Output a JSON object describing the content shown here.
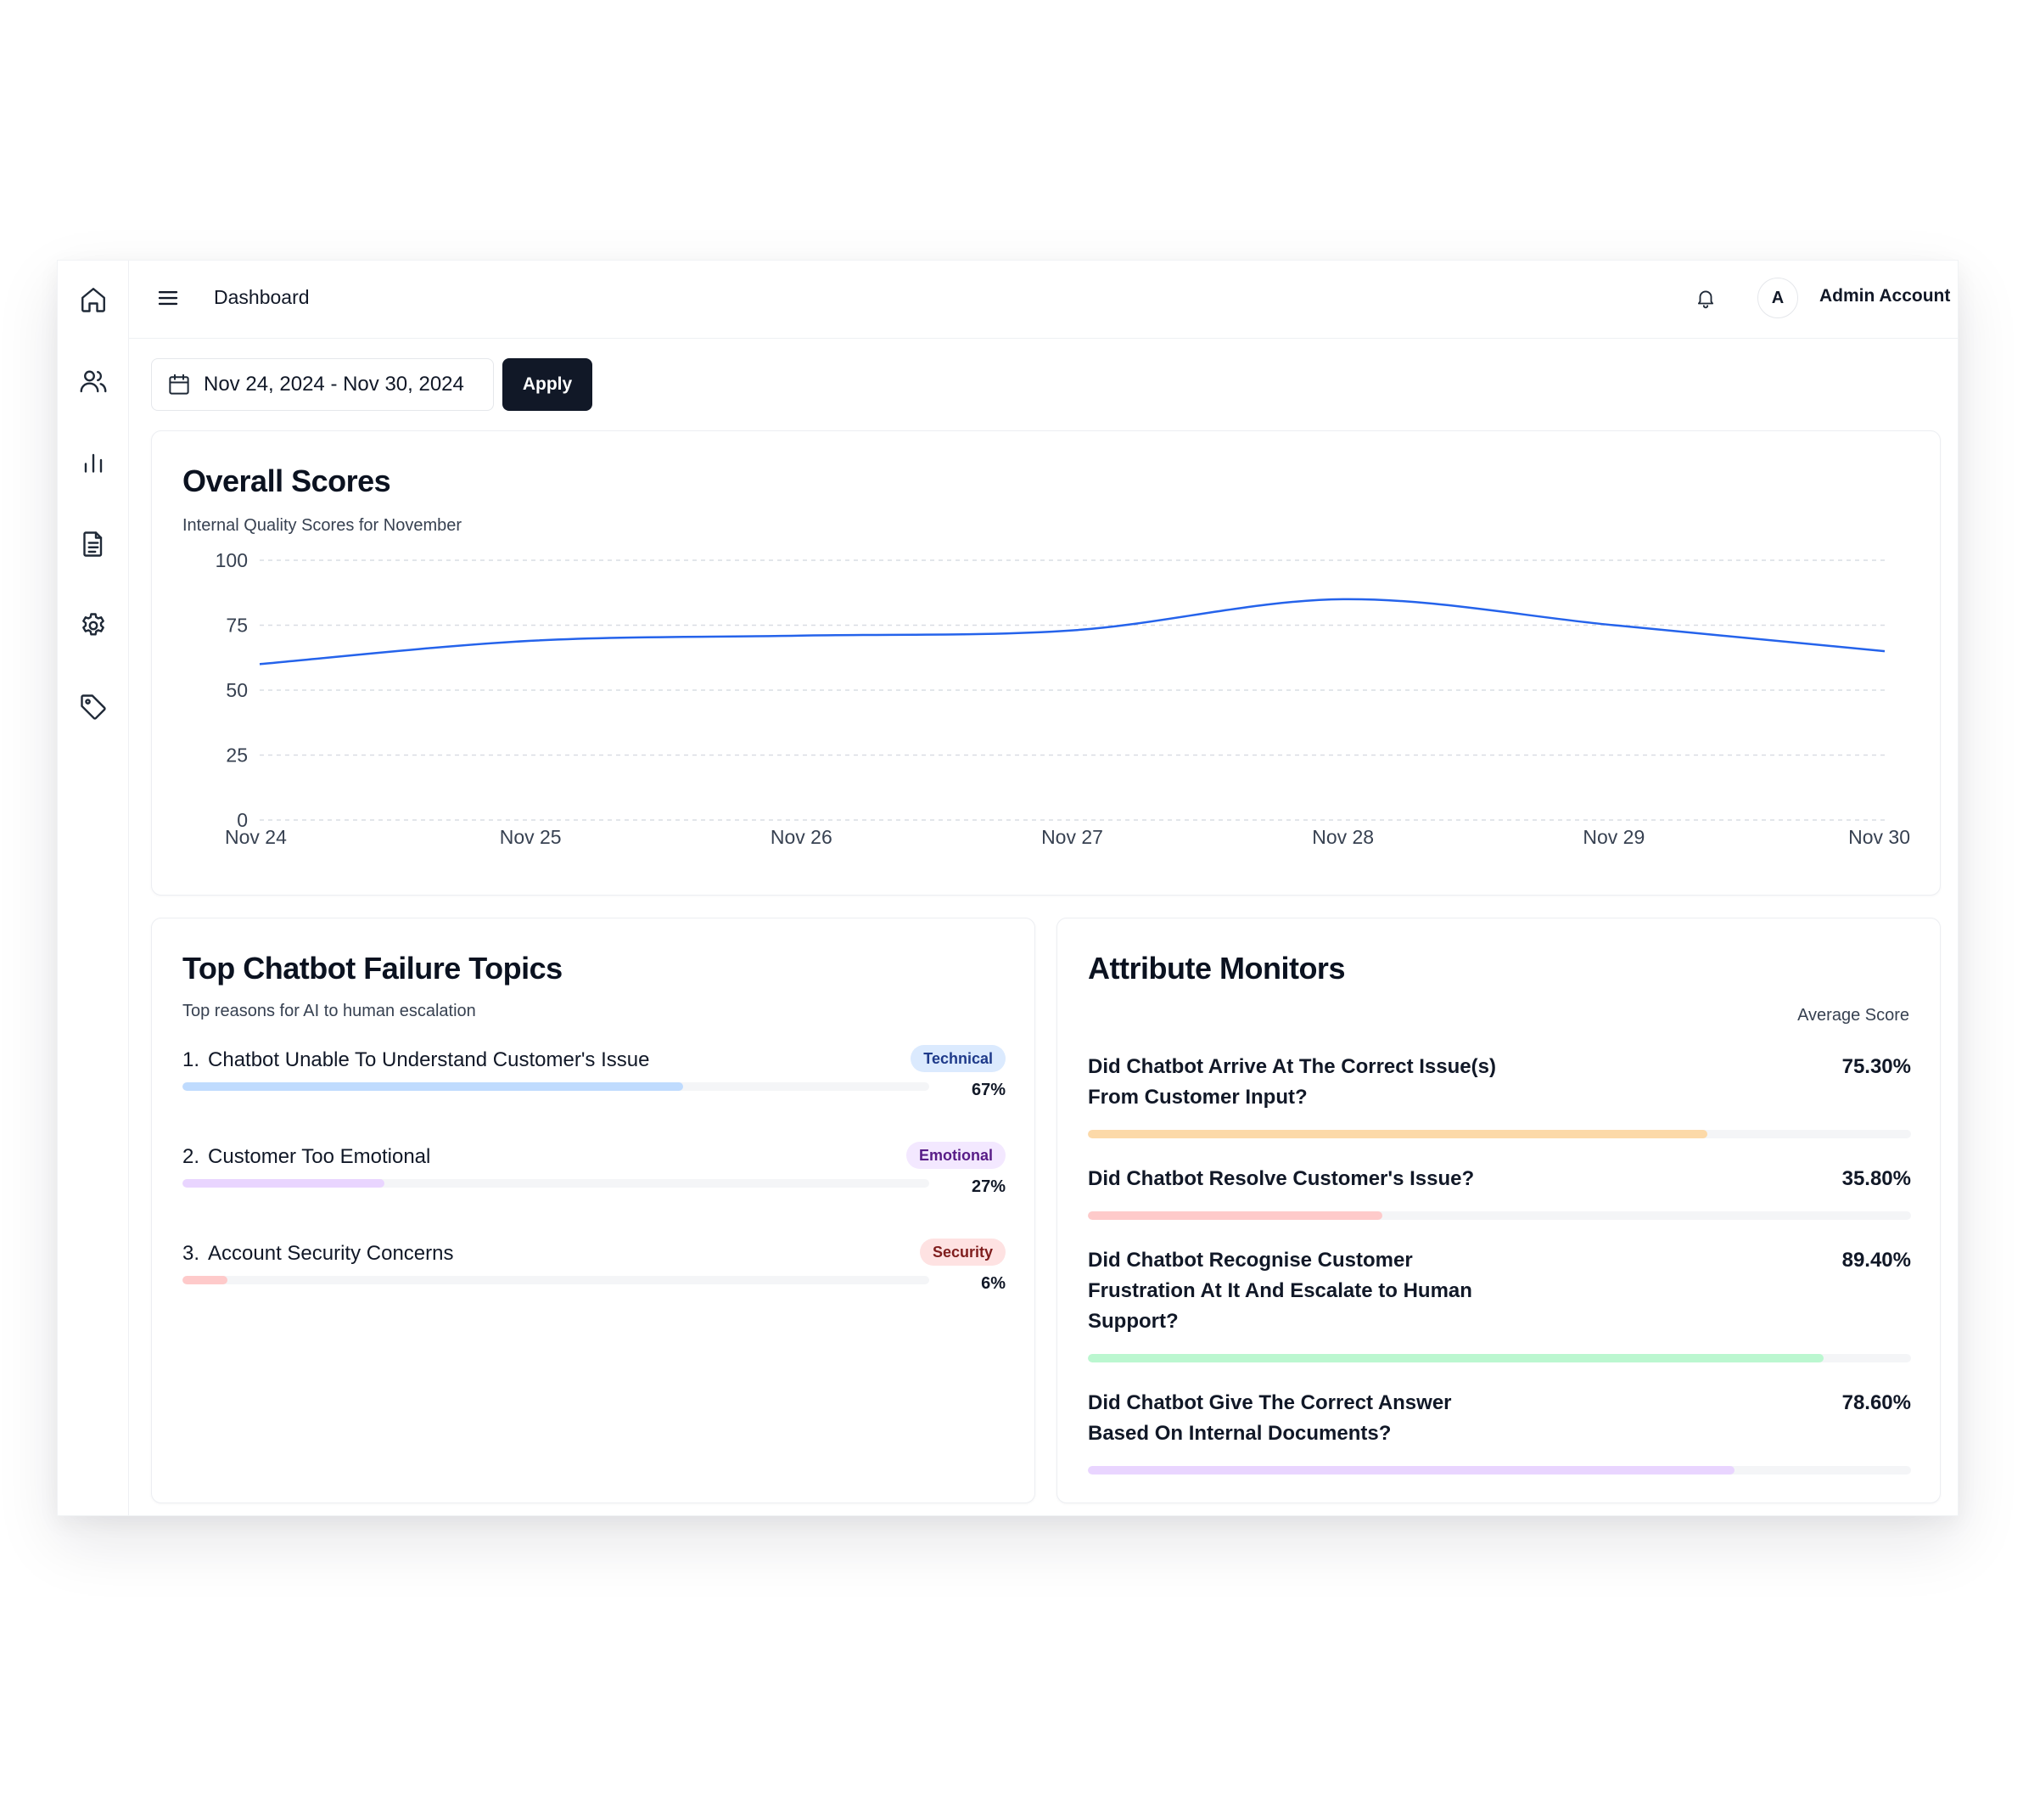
{
  "header": {
    "title": "Dashboard",
    "avatar_letter": "A",
    "account_name": "Admin Account"
  },
  "sidebar": {
    "items": [
      {
        "icon": "home-icon"
      },
      {
        "icon": "users-icon"
      },
      {
        "icon": "bar-chart-icon"
      },
      {
        "icon": "document-icon"
      },
      {
        "icon": "gear-icon"
      },
      {
        "icon": "tag-icon"
      }
    ]
  },
  "filters": {
    "date_range": "Nov 24, 2024 - Nov 30, 2024",
    "apply_label": "Apply"
  },
  "overall": {
    "title": "Overall Scores",
    "subtitle": "Internal Quality Scores for November"
  },
  "chart_data": {
    "type": "line",
    "title": "Overall Scores",
    "subtitle": "Internal Quality Scores for November",
    "x": [
      "Nov 24",
      "Nov 25",
      "Nov 26",
      "Nov 27",
      "Nov 28",
      "Nov 29",
      "Nov 30"
    ],
    "series": [
      {
        "values": [
          60,
          69,
          71,
          73,
          85,
          75,
          65
        ]
      }
    ],
    "y_ticks": [
      0,
      25,
      50,
      75,
      100
    ],
    "ylim": [
      0,
      100
    ],
    "grid": "horizontal dashed",
    "line_color": "#2563eb"
  },
  "failure_topics": {
    "title": "Top Chatbot Failure Topics",
    "subtitle": "Top reasons for AI to human escalation",
    "items": [
      {
        "num": "1.",
        "label": "Chatbot Unable To Understand Customer's Issue",
        "badge": "Technical",
        "pct_label": "67%",
        "value": 67,
        "bar_color": "#bfdbfe",
        "badge_bg": "#dbeafe",
        "badge_color": "#1e3a8a"
      },
      {
        "num": "2.",
        "label": "Customer Too Emotional",
        "badge": "Emotional",
        "pct_label": "27%",
        "value": 27,
        "bar_color": "#e9d5ff",
        "badge_bg": "#f3e8ff",
        "badge_color": "#581c87"
      },
      {
        "num": "3.",
        "label": "Account Security Concerns",
        "badge": "Security",
        "pct_label": "6%",
        "value": 6,
        "bar_color": "#fecaca",
        "badge_bg": "#fee2e2",
        "badge_color": "#7f1d1d"
      }
    ]
  },
  "attributes": {
    "title": "Attribute Monitors",
    "column_label": "Average Score",
    "items": [
      {
        "question_lines": [
          "Did Chatbot Arrive At The Correct Issue(s)",
          "From Customer Input?"
        ],
        "value_label": "75.30%",
        "value": 75.3,
        "bar_color": "#fcd9a8"
      },
      {
        "question_lines": [
          "Did Chatbot Resolve Customer's Issue?"
        ],
        "value_label": "35.80%",
        "value": 35.8,
        "bar_color": "#fecaca"
      },
      {
        "question_lines": [
          "Did Chatbot Recognise Customer",
          "Frustration At It And Escalate to Human",
          "Support?"
        ],
        "value_label": "89.40%",
        "value": 89.4,
        "bar_color": "#bbf7d0"
      },
      {
        "question_lines": [
          "Did Chatbot Give The Correct Answer",
          "Based On Internal Documents?"
        ],
        "value_label": "78.60%",
        "value": 78.6,
        "bar_color": "#e9d5ff"
      }
    ]
  }
}
